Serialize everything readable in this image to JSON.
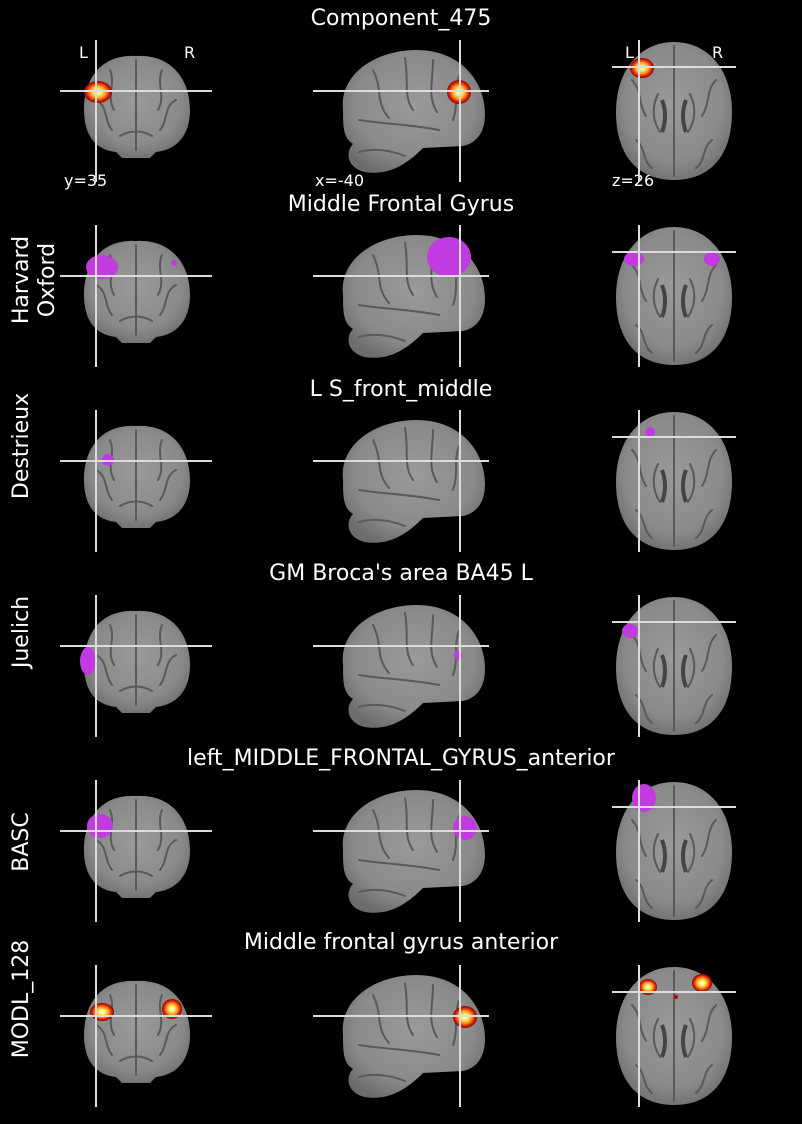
{
  "header": {
    "title": "Component_475"
  },
  "orientation": {
    "left": "L",
    "right": "R"
  },
  "coordinates": {
    "coronal": "y=35",
    "sagittal": "x=-40",
    "axial": "z=26"
  },
  "overlay_colors": {
    "component_map": "hot colormap (red-orange-yellow-white)",
    "atlas_region": "#c23be0"
  },
  "rows": [
    {
      "atlas": "",
      "region": "Component_475"
    },
    {
      "atlas": "Harvard\nOxford",
      "region": "Middle Frontal Gyrus"
    },
    {
      "atlas": "Destrieux",
      "region": "L S_front_middle"
    },
    {
      "atlas": "Juelich",
      "region": "GM Broca's area BA45 L"
    },
    {
      "atlas": "BASC",
      "region": "left_MIDDLE_FRONTAL_GYRUS_anterior"
    },
    {
      "atlas": "MODL_128",
      "region": "Middle frontal gyrus anterior"
    }
  ]
}
